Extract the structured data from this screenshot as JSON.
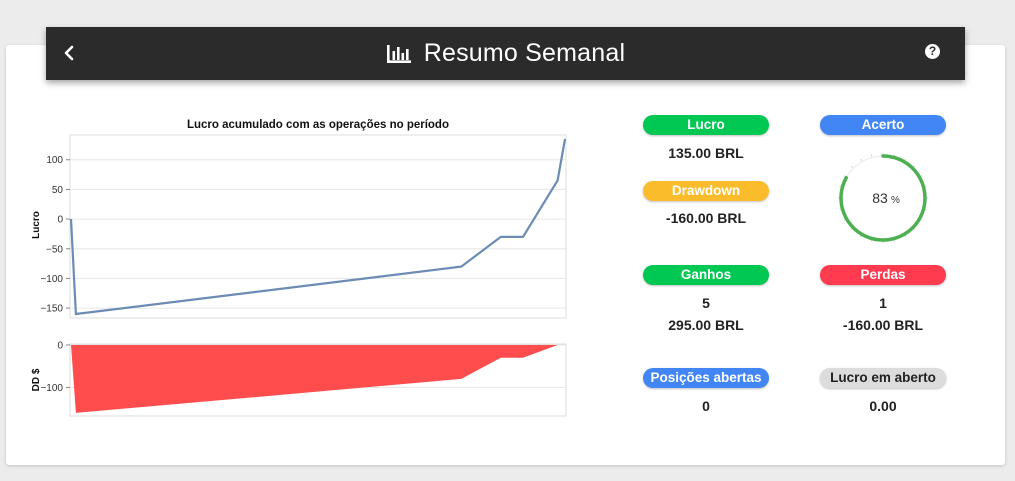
{
  "header": {
    "title": "Resumo Semanal",
    "back_icon": "chevron-left-icon",
    "chart_icon": "bar-chart-icon",
    "help_icon": "help-circle-icon"
  },
  "colors": {
    "green": "#00c853",
    "blue": "#4285f4",
    "orange": "#fbbc2b",
    "red": "#ff3b50",
    "grey": "#dcdcdc",
    "line": "#6b8cb3",
    "dd_fill": "#ff4d4d"
  },
  "stats": {
    "lucro": {
      "label": "Lucro",
      "value": "135.00 BRL"
    },
    "acerto": {
      "label": "Acerto",
      "value": "83",
      "unit": "%",
      "fraction": 0.83
    },
    "drawdown": {
      "label": "Drawdown",
      "value": "-160.00 BRL"
    },
    "ganhos": {
      "label": "Ganhos",
      "count": "5",
      "value": "295.00 BRL"
    },
    "perdas": {
      "label": "Perdas",
      "count": "1",
      "value": "-160.00 BRL"
    },
    "posicoes": {
      "label": "Posições abertas",
      "value": "0"
    },
    "lucro_aberto": {
      "label": "Lucro em aberto",
      "value": "0.00"
    }
  },
  "chart_data": [
    {
      "type": "line",
      "title": "Lucro acumulado com as operações no período",
      "ylabel": "Lucro",
      "ylim": [
        -165,
        140
      ],
      "yticks": [
        100,
        50,
        0,
        -50,
        -100,
        -150
      ],
      "tick_labels": [
        "100",
        "50",
        "0",
        "−50",
        "−100",
        "−150"
      ],
      "grid": true,
      "x": [
        0,
        0.01,
        0.79,
        0.87,
        0.915,
        0.985,
        1.0
      ],
      "y": [
        0,
        -160,
        -80,
        -30,
        -30,
        65,
        135
      ]
    },
    {
      "type": "area",
      "ylabel": "DD $",
      "ylim": [
        -165,
        0
      ],
      "yticks": [
        0,
        -100
      ],
      "tick_labels": [
        "0",
        "−100"
      ],
      "grid": true,
      "x": [
        0,
        0.01,
        0.79,
        0.87,
        0.915,
        0.985,
        1.0
      ],
      "y": [
        0,
        -160,
        -80,
        -30,
        -30,
        0,
        0
      ]
    }
  ]
}
